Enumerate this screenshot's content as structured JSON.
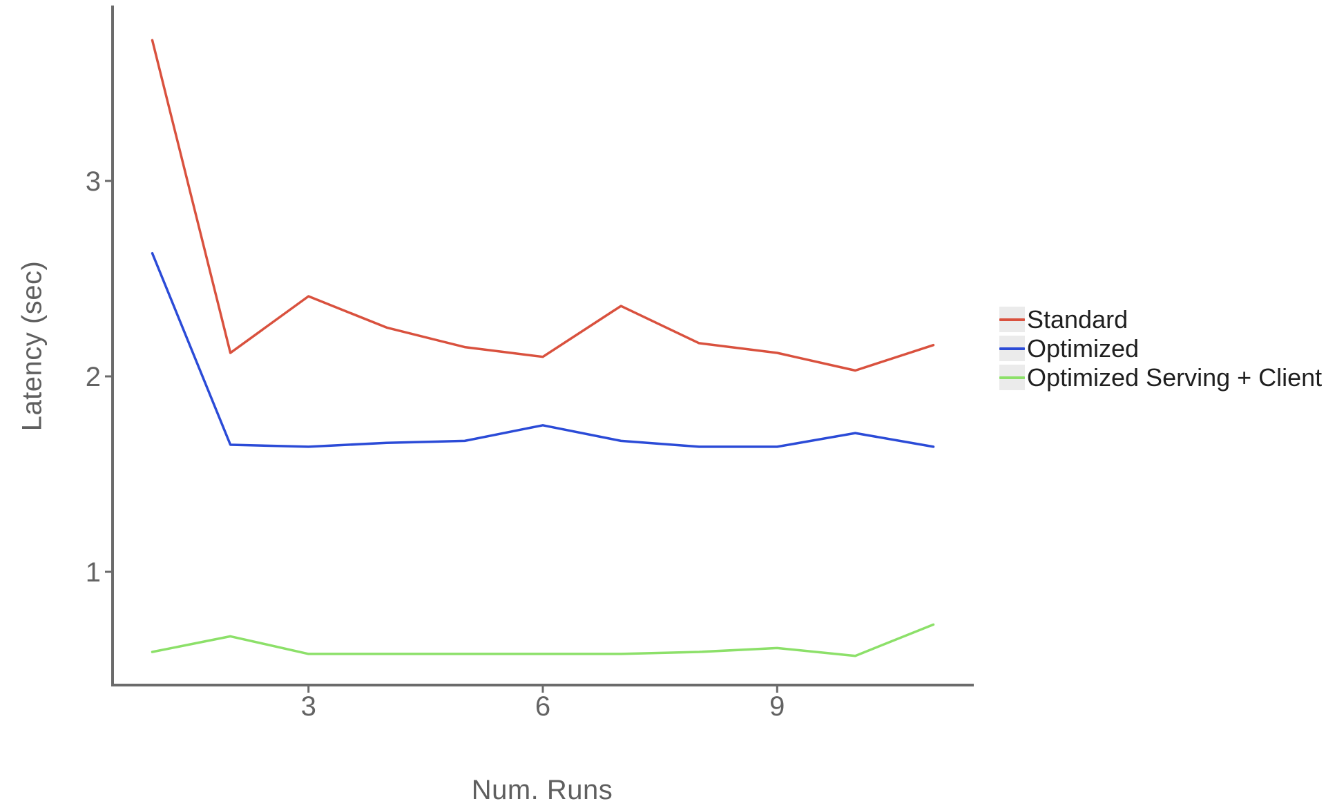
{
  "chart_data": {
    "type": "line",
    "title": "",
    "xlabel": "Num. Runs",
    "ylabel": "Latency (sec)",
    "x": [
      1,
      2,
      3,
      4,
      5,
      6,
      7,
      8,
      9,
      10,
      11
    ],
    "series": [
      {
        "name": "Standard",
        "color": "#d9513e",
        "values": [
          3.72,
          2.12,
          2.41,
          2.25,
          2.15,
          2.1,
          2.36,
          2.17,
          2.12,
          2.03,
          2.16
        ]
      },
      {
        "name": "Optimized",
        "color": "#2b4bd7",
        "values": [
          2.63,
          1.65,
          1.64,
          1.66,
          1.67,
          1.75,
          1.67,
          1.64,
          1.64,
          1.71,
          1.64
        ]
      },
      {
        "name": "Optimized Serving + Client",
        "color": "#8ce069",
        "values": [
          0.59,
          0.67,
          0.58,
          0.58,
          0.58,
          0.58,
          0.58,
          0.59,
          0.61,
          0.57,
          0.73
        ]
      }
    ],
    "x_ticks": [
      3,
      6,
      9
    ],
    "y_ticks": [
      1,
      2,
      3
    ],
    "xlim": [
      0.5,
      11.5
    ],
    "ylim": [
      0.42,
      3.9
    ],
    "grid": false,
    "legend_position": "right",
    "colors": {
      "axis": "#6b6b6b",
      "tick_label": "#636363",
      "axis_title": "#5f5f5f",
      "legend_text": "#1f1f1f",
      "legend_key_bg": "#ebebeb",
      "background": "#ffffff"
    }
  }
}
